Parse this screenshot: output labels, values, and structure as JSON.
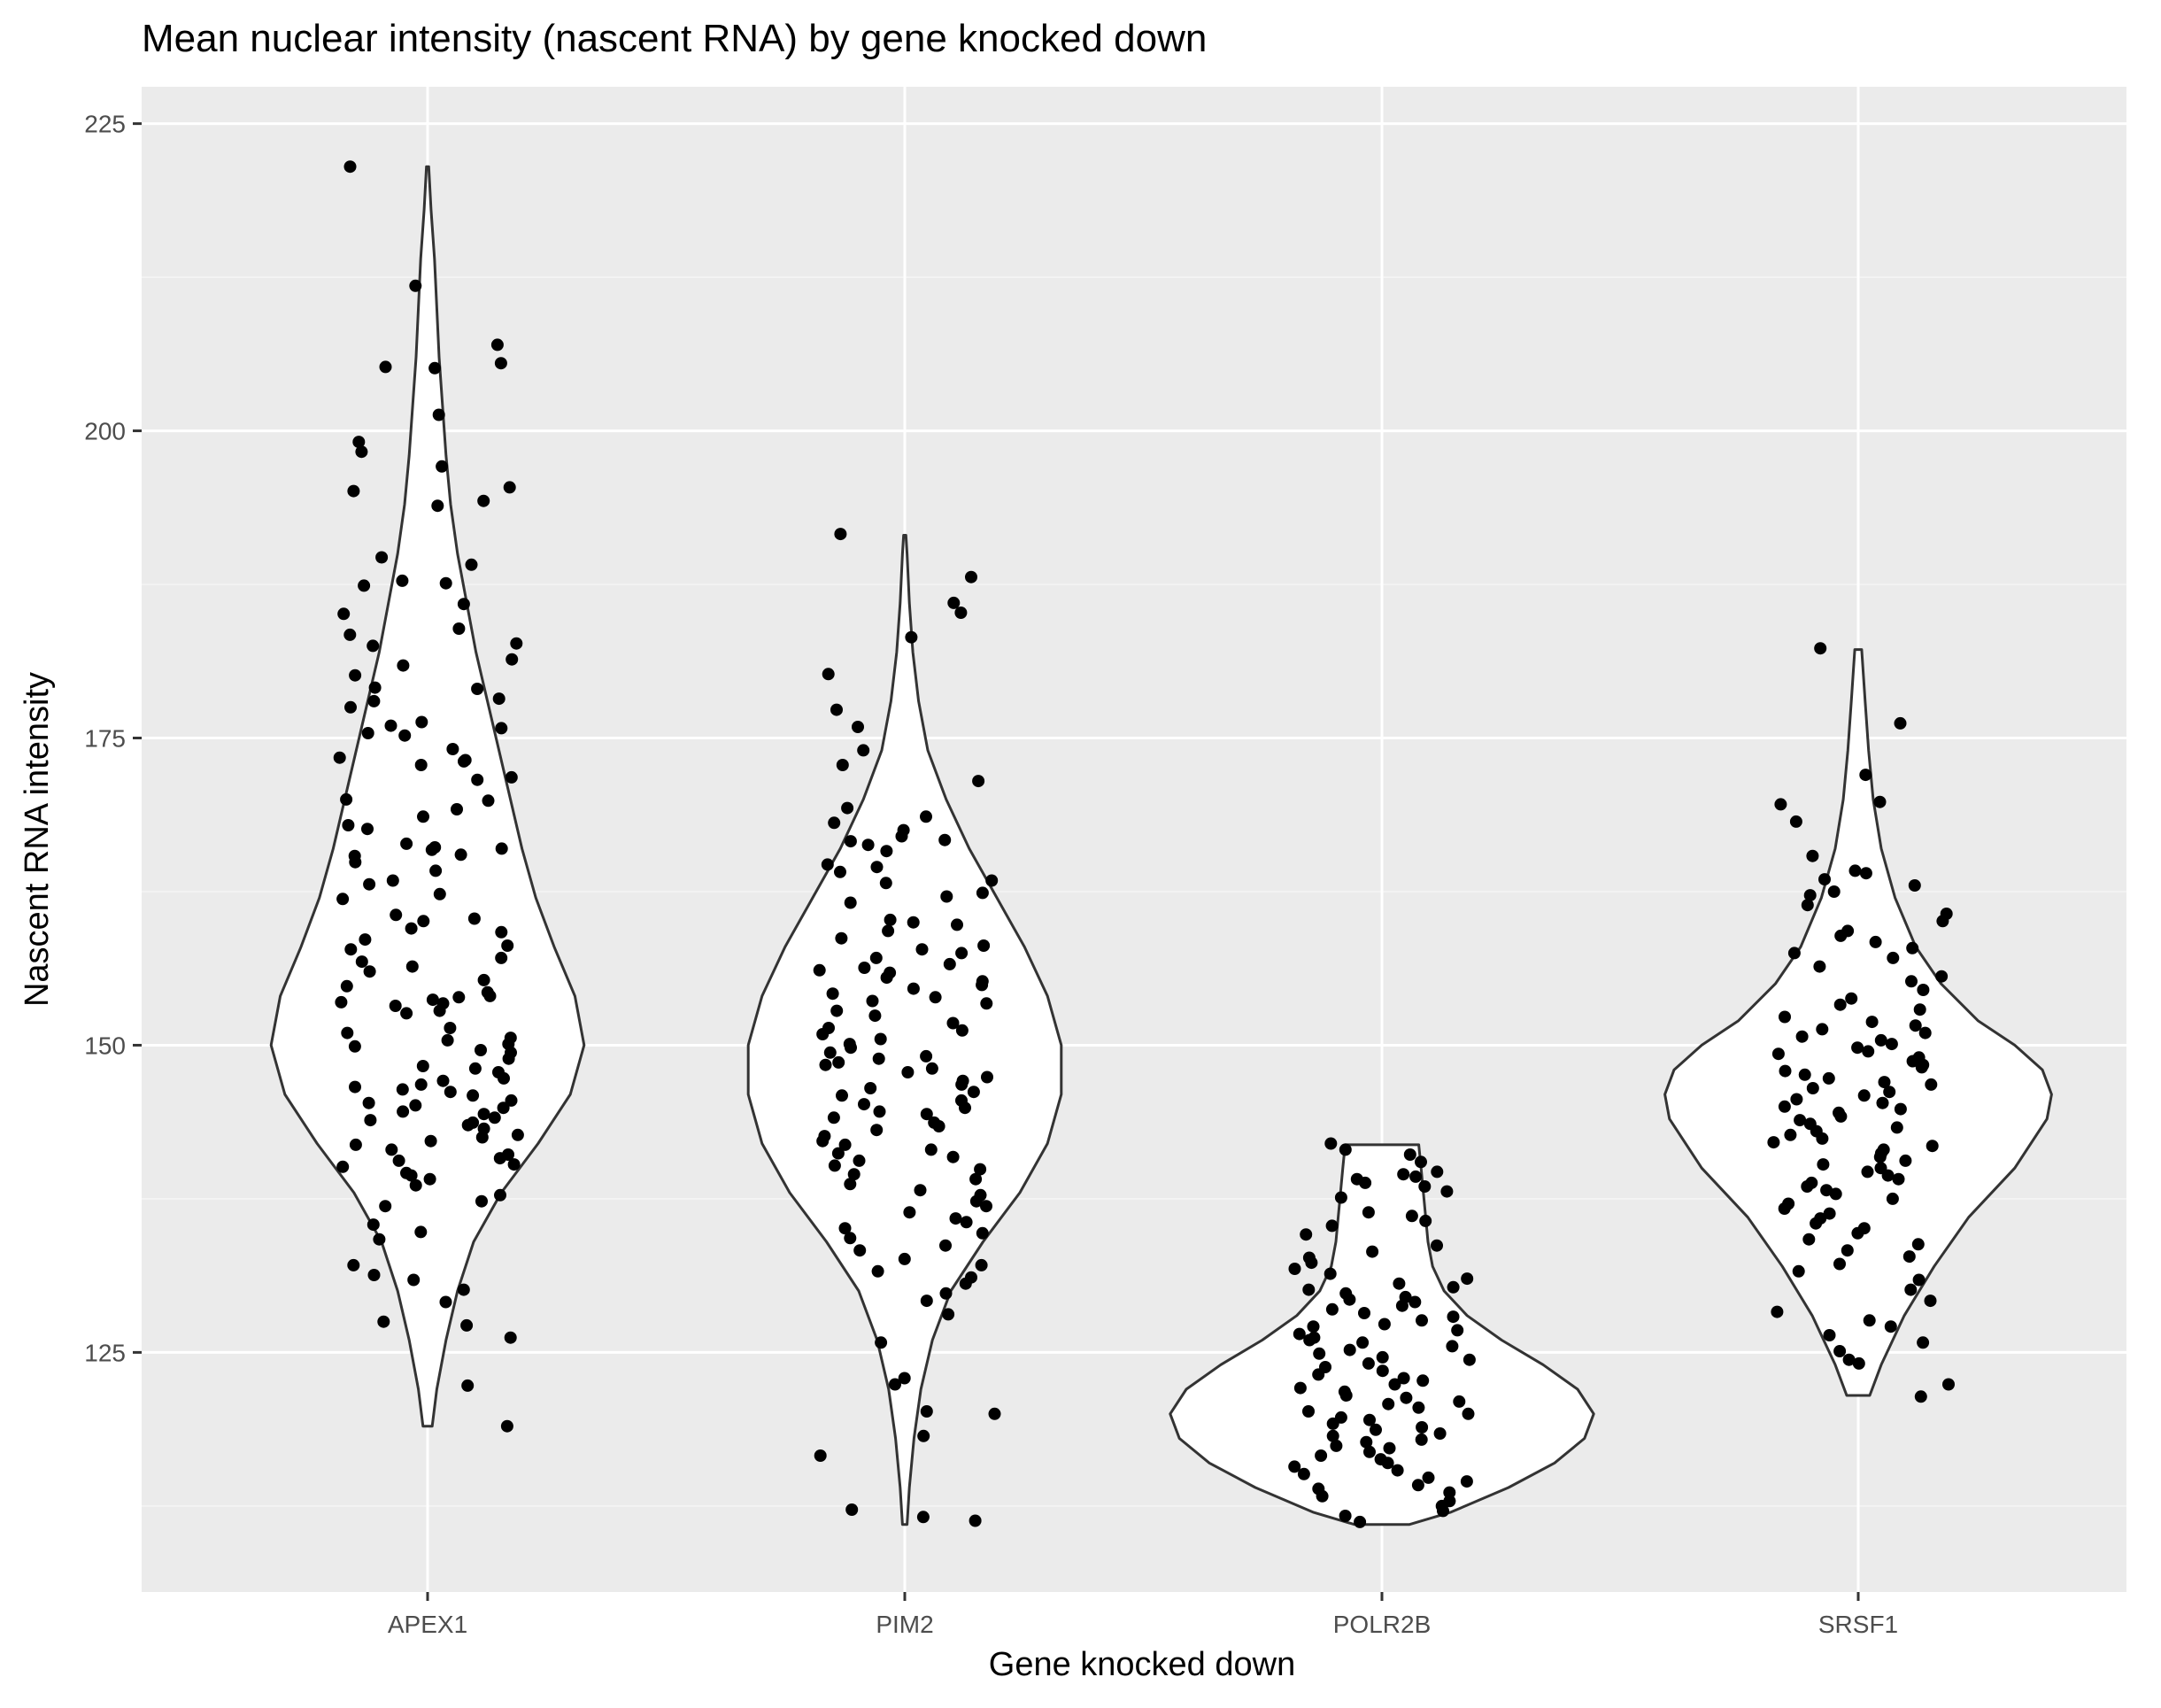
{
  "chart_data": {
    "type": "violin",
    "title": "Mean nuclear intensity (nascent RNA) by gene knocked down",
    "xlabel": "Gene knocked down",
    "ylabel": "Nascent RNA intensity",
    "categories": [
      "APEX1",
      "PIM2",
      "POLR2B",
      "SRSF1"
    ],
    "y_ticks": [
      125,
      150,
      175,
      200,
      225
    ],
    "ylim": [
      105.5,
      228
    ],
    "grid": true,
    "legend": "none",
    "series": [
      {
        "category": "APEX1",
        "range": [
          119,
          221.5
        ],
        "violin_profile": [
          [
            119,
            0.02
          ],
          [
            122,
            0.04
          ],
          [
            126,
            0.08
          ],
          [
            130,
            0.13
          ],
          [
            134,
            0.2
          ],
          [
            138,
            0.32
          ],
          [
            142,
            0.48
          ],
          [
            146,
            0.62
          ],
          [
            150,
            0.68
          ],
          [
            154,
            0.64
          ],
          [
            158,
            0.55
          ],
          [
            162,
            0.47
          ],
          [
            166,
            0.41
          ],
          [
            170,
            0.36
          ],
          [
            174,
            0.31
          ],
          [
            178,
            0.26
          ],
          [
            182,
            0.21
          ],
          [
            186,
            0.17
          ],
          [
            190,
            0.13
          ],
          [
            194,
            0.1
          ],
          [
            198,
            0.08
          ],
          [
            202,
            0.065
          ],
          [
            206,
            0.05
          ],
          [
            210,
            0.04
          ],
          [
            214,
            0.03
          ],
          [
            218,
            0.015
          ],
          [
            221.5,
            0.005
          ]
        ],
        "points": [
          221.5,
          211.8,
          207,
          205.5,
          205.2,
          205.1,
          201.3,
          199.1,
          198.3,
          197.1,
          195.4,
          195.1,
          194.3,
          193.9,
          189.7,
          189.1,
          187.8,
          187.6,
          187.4,
          185.9,
          185.1,
          183.9,
          183.4,
          182.7,
          182.5,
          181.4,
          180.9,
          180.1,
          179.1,
          179,
          178.2,
          178,
          177.5,
          176.3,
          176,
          175.8,
          175.4,
          175.2,
          174.1,
          173.4,
          173.2,
          173.1,
          172.8,
          171.8,
          171.6,
          170,
          169.9,
          169.2,
          168.6,
          167.9,
          167.6,
          166.4,
          166.1,
          166,
          165.9,
          165.5,
          165.4,
          164.9,
          164.2,
          163.4,
          163.1,
          162.3,
          161.9,
          160.6,
          160.3,
          160.1,
          159.5,
          159.2,
          158.6,
          158.1,
          157.8,
          157.1,
          156.8,
          156.4,
          156,
          155.3,
          154.8,
          154.3,
          154,
          153.9,
          153.7,
          153.5,
          153.4,
          153.2,
          152.8,
          152.6,
          151.4,
          151,
          150.6,
          150.4,
          150.1,
          149.9,
          149.6,
          149.4,
          148.9,
          148.3,
          148.1,
          147.8,
          147.3,
          147.1,
          146.8,
          146.6,
          146.4,
          146.2,
          145.9,
          145.5,
          145.3,
          145.1,
          144.9,
          144.6,
          144.4,
          144.1,
          143.9,
          143.7,
          143.5,
          143.2,
          142.7,
          142.5,
          142.2,
          141.9,
          141.5,
          141.1,
          140.8,
          140.6,
          140.3,
          140.1,
          139.6,
          139.4,
          139.1,
          138.6,
          137.8,
          137.3,
          136.9,
          135.4,
          134.8,
          134.2,
          132.1,
          131.3,
          130.9,
          130.1,
          129.1,
          127.5,
          127.2,
          126.2,
          122.3,
          119
        ]
      },
      {
        "category": "PIM2",
        "range": [
          111,
          191.5
        ],
        "violin_profile": [
          [
            111,
            0.01
          ],
          [
            114,
            0.02
          ],
          [
            118,
            0.04
          ],
          [
            122,
            0.07
          ],
          [
            126,
            0.12
          ],
          [
            130,
            0.2
          ],
          [
            134,
            0.34
          ],
          [
            138,
            0.5
          ],
          [
            142,
            0.62
          ],
          [
            146,
            0.68
          ],
          [
            150,
            0.68
          ],
          [
            154,
            0.62
          ],
          [
            158,
            0.52
          ],
          [
            162,
            0.4
          ],
          [
            166,
            0.28
          ],
          [
            170,
            0.18
          ],
          [
            174,
            0.1
          ],
          [
            178,
            0.06
          ],
          [
            182,
            0.035
          ],
          [
            186,
            0.02
          ],
          [
            190,
            0.01
          ],
          [
            191.5,
            0.005
          ]
        ],
        "points": [
          191.6,
          188.1,
          186,
          185.2,
          183.2,
          180.2,
          177.3,
          175.9,
          174,
          172.8,
          171.5,
          169.3,
          168.6,
          168.1,
          167.5,
          167,
          166.7,
          166.6,
          166.3,
          165.8,
          164.7,
          164.5,
          164.1,
          163.4,
          163.2,
          162.4,
          162.1,
          161.6,
          160.2,
          160,
          159.8,
          159.3,
          158.7,
          158.1,
          157.8,
          157.5,
          157.1,
          156.6,
          156.3,
          156.1,
          155.9,
          155.5,
          155.2,
          154.9,
          154.6,
          154.2,
          153.9,
          153.6,
          153.4,
          152.8,
          152.4,
          151.8,
          151.4,
          151.2,
          150.9,
          150.5,
          150.1,
          149.8,
          149.4,
          149.1,
          148.9,
          148.6,
          148.4,
          148.1,
          147.8,
          147.4,
          147.1,
          146.8,
          146.5,
          146.2,
          145.9,
          145.5,
          145.2,
          144.9,
          144.6,
          144.4,
          144.1,
          143.7,
          143.4,
          143.1,
          142.6,
          142.2,
          141.9,
          141.5,
          141.2,
          140.9,
          140.6,
          140.2,
          139.9,
          139.5,
          139.1,
          138.7,
          138.2,
          137.8,
          137.3,
          136.9,
          136.4,
          135.9,
          135.6,
          135.1,
          134.7,
          134.3,
          133.7,
          133.3,
          132.6,
          132.1,
          131.6,
          131.1,
          130.6,
          129.8,
          129.2,
          128.1,
          125.8,
          122.9,
          122.4,
          120.2,
          120,
          118.2,
          116.6,
          112.2,
          111.6,
          111.3
        ]
      },
      {
        "category": "POLR2B",
        "range": [
          111,
          141.9
        ],
        "violin_profile": [
          [
            111,
            0.12
          ],
          [
            112,
            0.3
          ],
          [
            114,
            0.55
          ],
          [
            116,
            0.75
          ],
          [
            118,
            0.88
          ],
          [
            120,
            0.92
          ],
          [
            122,
            0.85
          ],
          [
            124,
            0.7
          ],
          [
            126,
            0.52
          ],
          [
            128,
            0.37
          ],
          [
            130,
            0.27
          ],
          [
            132,
            0.22
          ],
          [
            134,
            0.2
          ],
          [
            136,
            0.19
          ],
          [
            138,
            0.18
          ],
          [
            140,
            0.17
          ],
          [
            141.9,
            0.16
          ]
        ],
        "points": [
          142,
          141.5,
          141.1,
          140.5,
          139.7,
          139.5,
          139.3,
          139.1,
          138.8,
          138.5,
          138.1,
          137.6,
          136.4,
          136.1,
          135.7,
          135.3,
          134.6,
          133.7,
          133.2,
          132.7,
          132.3,
          131.8,
          131.4,
          131,
          130.6,
          130.3,
          130.1,
          129.8,
          129.5,
          129.3,
          129.1,
          128.8,
          128.5,
          128.2,
          127.9,
          127.6,
          127.3,
          127.1,
          126.8,
          126.5,
          126.2,
          126,
          125.8,
          125.5,
          125.2,
          124.9,
          124.6,
          124.4,
          124.1,
          123.8,
          123.5,
          123.2,
          122.9,
          122.7,
          122.4,
          122.1,
          121.8,
          121.5,
          121.3,
          121,
          120.8,
          120.5,
          120.2,
          120,
          119.7,
          119.5,
          119.2,
          118.9,
          118.7,
          118.4,
          118.2,
          117.9,
          117.7,
          117.4,
          117.2,
          116.9,
          116.6,
          116.3,
          116,
          115.7,
          115.4,
          115.1,
          114.8,
          114.5,
          114.2,
          113.9,
          113.6,
          113.3,
          112.9,
          112.5,
          112.1,
          111.7,
          111.2
        ]
      },
      {
        "category": "SRSF1",
        "range": [
          121.5,
          182.2
        ],
        "violin_profile": [
          [
            121.5,
            0.05
          ],
          [
            124,
            0.1
          ],
          [
            128,
            0.2
          ],
          [
            132,
            0.33
          ],
          [
            136,
            0.48
          ],
          [
            140,
            0.68
          ],
          [
            144,
            0.82
          ],
          [
            146,
            0.84
          ],
          [
            148,
            0.8
          ],
          [
            150,
            0.68
          ],
          [
            152,
            0.52
          ],
          [
            155,
            0.36
          ],
          [
            158,
            0.25
          ],
          [
            162,
            0.16
          ],
          [
            166,
            0.1
          ],
          [
            170,
            0.065
          ],
          [
            174,
            0.045
          ],
          [
            178,
            0.03
          ],
          [
            182.2,
            0.015
          ]
        ],
        "points": [
          182.3,
          176.2,
          172,
          169.8,
          169.6,
          168.2,
          165.4,
          164.2,
          164,
          163.5,
          163,
          162.5,
          162.2,
          161.4,
          160.7,
          160.1,
          159.3,
          158.9,
          158.4,
          157.9,
          157.5,
          157.1,
          156.4,
          155.6,
          155.2,
          154.5,
          153.8,
          153.3,
          152.9,
          152.3,
          151.9,
          151.6,
          151.3,
          151,
          150.7,
          150.4,
          150.1,
          149.8,
          149.5,
          149.3,
          149,
          148.7,
          148.4,
          148.2,
          147.9,
          147.6,
          147.3,
          147,
          146.8,
          146.5,
          146.2,
          145.9,
          145.6,
          145.3,
          145,
          144.8,
          144.5,
          144.2,
          143.9,
          143.6,
          143.3,
          143,
          142.7,
          142.4,
          142.1,
          141.8,
          141.5,
          141.2,
          140.9,
          140.6,
          140.3,
          140,
          139.7,
          139.4,
          139.1,
          138.8,
          138.5,
          138.2,
          137.9,
          137.5,
          137.1,
          136.7,
          136.3,
          135.9,
          135.5,
          135.1,
          134.7,
          134.2,
          133.8,
          133.3,
          132.8,
          132.2,
          131.6,
          130.9,
          130.1,
          129.2,
          128.3,
          127.6,
          127.1,
          126.4,
          125.8,
          125.1,
          124.4,
          124.1,
          122.4,
          121.4
        ]
      }
    ],
    "colors": {
      "panel_background": "#ebebeb",
      "grid_major": "#ffffff",
      "grid_minor": "#f5f5f5",
      "violin_fill": "#ffffff",
      "violin_outline": "#333333",
      "point": "#000000",
      "tick_label": "#4d4d4d"
    }
  }
}
